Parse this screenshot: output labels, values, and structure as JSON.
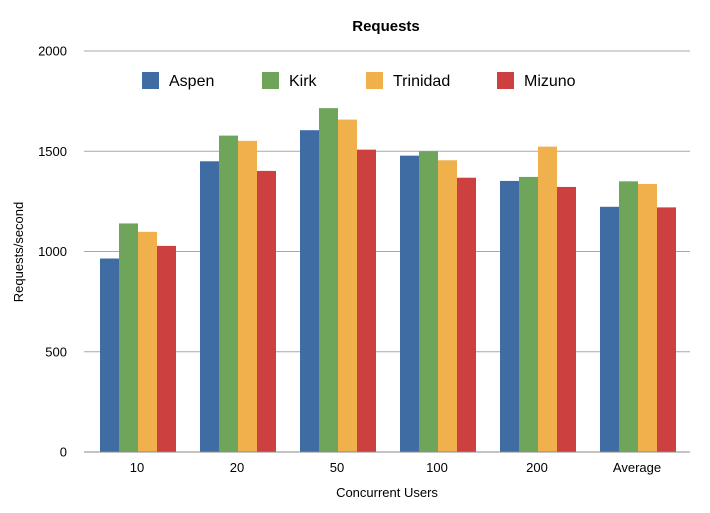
{
  "chart_data": {
    "type": "bar",
    "title": "Requests",
    "xlabel": "Concurrent Users",
    "ylabel": "Requests/second",
    "categories": [
      "10",
      "20",
      "50",
      "100",
      "200",
      "Average"
    ],
    "ylim": [
      0,
      2000
    ],
    "yticks": [
      0,
      500,
      1000,
      1500,
      2000
    ],
    "grid": true,
    "legend_position": "top",
    "series": [
      {
        "name": "Aspen",
        "color": "#3e6ca3",
        "values": [
          965,
          1450,
          1605,
          1478,
          1352,
          1223
        ]
      },
      {
        "name": "Kirk",
        "color": "#6ea55a",
        "values": [
          1140,
          1578,
          1715,
          1500,
          1372,
          1350
        ]
      },
      {
        "name": "Trinidad",
        "color": "#f0b04c",
        "values": [
          1098,
          1552,
          1658,
          1455,
          1523,
          1337
        ]
      },
      {
        "name": "Mizuno",
        "color": "#cc4040",
        "values": [
          1028,
          1402,
          1508,
          1368,
          1322,
          1220
        ]
      }
    ]
  }
}
